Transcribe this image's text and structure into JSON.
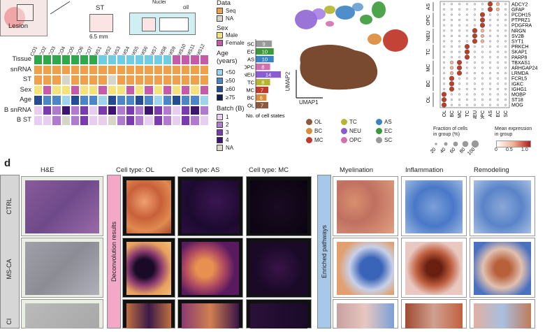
{
  "schematic": {
    "lesion_label": "Lesion",
    "st_label": "ST",
    "scale_label": "6.5 mm",
    "nuclei_label": "Nuclei",
    "oil_label": "oil"
  },
  "legend": {
    "data_title": "Data",
    "data_items": [
      {
        "label": "Seq",
        "color": "#f0a04a"
      },
      {
        "label": "NA",
        "color": "#d9d4c8"
      }
    ],
    "sex_title": "Sex",
    "sex_items": [
      {
        "label": "Male",
        "color": "#f5e27a"
      },
      {
        "label": "Female",
        "color": "#c45aa8"
      }
    ],
    "age_title": "Age",
    "age_title2": "(years)",
    "age_items": [
      {
        "label": "<50",
        "color": "#9dd4ee"
      },
      {
        "label": "≥50",
        "color": "#4a86c8"
      },
      {
        "label": "≥60",
        "color": "#234c93"
      },
      {
        "label": "≥75",
        "color": "#10214a"
      }
    ],
    "batch_title": "Batch (B)",
    "batch_items": [
      {
        "label": "1",
        "color": "#e7cdf0"
      },
      {
        "label": "2",
        "color": "#b07ad0"
      },
      {
        "label": "3",
        "color": "#7a3ab0"
      },
      {
        "label": "4",
        "color": "#3d1570"
      },
      {
        "label": "NA",
        "color": "#d9d4c8"
      }
    ]
  },
  "sample_grid": {
    "columns": [
      "CO1",
      "CO2",
      "CO3",
      "CO4",
      "CO5",
      "CO6",
      "CO7",
      "MS1",
      "MS2",
      "MS3",
      "MS4",
      "MS5",
      "MS6",
      "MS7",
      "MS8",
      "MS9",
      "MS10",
      "MS11",
      "MS12"
    ],
    "rows": [
      "Tissue",
      "snRNA",
      "ST",
      "Sex",
      "Age",
      "B snRNA",
      "B ST"
    ],
    "tissue_colors": [
      "#2ea84a",
      "#2ea84a",
      "#2ea84a",
      "#2ea84a",
      "#2ea84a",
      "#2ea84a",
      "#2ea84a",
      "#70cce0",
      "#70cce0",
      "#70cce0",
      "#70cce0",
      "#70cce0",
      "#70cce0",
      "#70cce0",
      "#70cce0",
      "#c45aa8",
      "#c45aa8",
      "#c45aa8",
      "#c45aa8"
    ],
    "row_values": {
      "snRNA": [
        "S",
        "S",
        "S",
        "S",
        "S",
        "S",
        "S",
        "S",
        "S",
        "S",
        "S",
        "S",
        "S",
        "S",
        "S",
        "S",
        "S",
        "S",
        "S"
      ],
      "ST": [
        "S",
        "S",
        "S",
        "N",
        "S",
        "S",
        "S",
        "S",
        "N",
        "S",
        "S",
        "S",
        "S",
        "S",
        "S",
        "S",
        "S",
        "S",
        "S"
      ],
      "Sex": [
        "M",
        "F",
        "M",
        "M",
        "F",
        "M",
        "M",
        "F",
        "M",
        "M",
        "F",
        "M",
        "F",
        "M",
        "F",
        "M",
        "F",
        "M",
        "F"
      ],
      "Age": [
        "3",
        "2",
        "2",
        "1",
        "3",
        "2",
        "2",
        "1",
        "3",
        "2",
        "2",
        "3",
        "2",
        "1",
        "2",
        "3",
        "2",
        "2",
        "1"
      ],
      "B snRNA": [
        "1",
        "3",
        "2",
        "4",
        "2",
        "3",
        "1",
        "3",
        "4",
        "2",
        "3",
        "2",
        "4",
        "3",
        "2",
        "1",
        "3",
        "4",
        "2"
      ],
      "B ST": [
        "1",
        "1",
        "2",
        "N",
        "2",
        "3",
        "1",
        "1",
        "N",
        "2",
        "3",
        "2",
        "1",
        "3",
        "2",
        "1",
        "3",
        "2",
        "1"
      ]
    }
  },
  "bar_chart": {
    "xlabel": "No. of cell states",
    "chart_data": {
      "type": "bar",
      "categories": [
        "SC",
        "EC",
        "AS",
        "OPC",
        "NEU",
        "TC",
        "MC",
        "BC",
        "OL"
      ],
      "values": [
        9,
        10,
        10,
        8,
        14,
        8,
        7,
        6,
        7
      ],
      "colors": [
        "#999999",
        "#3a9a3a",
        "#3b82c4",
        "#d16fb0",
        "#8a5cd0",
        "#b5b530",
        "#c0392b",
        "#d98c3a",
        "#8b5a3c"
      ],
      "xlim": [
        0,
        14
      ]
    }
  },
  "umap": {
    "xlabel": "UMAP1",
    "ylabel": "UMAP2",
    "legend": [
      {
        "label": "OL",
        "color": "#8b5a3c"
      },
      {
        "label": "TC",
        "color": "#b5b530"
      },
      {
        "label": "AS",
        "color": "#3b82c4"
      },
      {
        "label": "BC",
        "color": "#d98c3a"
      },
      {
        "label": "NEU",
        "color": "#8a5cd0"
      },
      {
        "label": "EC",
        "color": "#3a9a3a"
      },
      {
        "label": "MC",
        "color": "#c0392b"
      },
      {
        "label": "OPC",
        "color": "#d16fb0"
      },
      {
        "label": "SC",
        "color": "#999999"
      }
    ]
  },
  "dotplot": {
    "genes": [
      "ADCY2",
      "GFAP",
      "PCDH15",
      "PTPRZ1",
      "PDGFRA",
      "NRGN",
      "SV2B",
      "SYT1",
      "PRKCH",
      "SKAP1",
      "PARP8",
      "TBXAS1",
      "ARHGAP24",
      "LRMDA",
      "FCRL5",
      "IGKC",
      "IGHG1",
      "MOBP",
      "ST18",
      "MOG"
    ],
    "group_labels": [
      "AS",
      "OPC",
      "NEU",
      "TC",
      "MC",
      "BC",
      "OL"
    ],
    "x_labels": [
      "OL",
      "BC",
      "MC",
      "TC",
      "NEU",
      "OPC",
      "AS",
      "EC",
      "SC"
    ],
    "size_legend_title": "Fraction of cells",
    "size_legend_title2": "in group (%)",
    "size_ticks": [
      "20",
      "40",
      "60",
      "80",
      "100"
    ],
    "color_legend_title": "Mean expression",
    "color_legend_title2": "in group",
    "color_ticks": [
      "0",
      "0.5",
      "1.0"
    ]
  },
  "panel_d": {
    "letter": "d",
    "row_labels": [
      "CTRL",
      "MS-CA",
      "CI"
    ],
    "he_title": "H&E",
    "deconv_side_label": "Deconvolution results",
    "deconv_titles": [
      "Cell type: OL",
      "Cell type: AS",
      "Cell type: MC"
    ],
    "enriched_side_label": "Enriched pathways",
    "enriched_titles": [
      "Myelination",
      "Inflammation",
      "Remodeling"
    ]
  }
}
